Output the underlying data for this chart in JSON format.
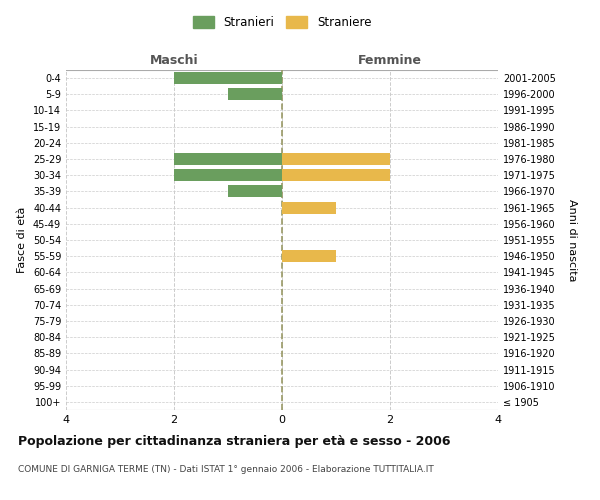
{
  "age_groups": [
    "100+",
    "95-99",
    "90-94",
    "85-89",
    "80-84",
    "75-79",
    "70-74",
    "65-69",
    "60-64",
    "55-59",
    "50-54",
    "45-49",
    "40-44",
    "35-39",
    "30-34",
    "25-29",
    "20-24",
    "15-19",
    "10-14",
    "5-9",
    "0-4"
  ],
  "birth_years": [
    "≤ 1905",
    "1906-1910",
    "1911-1915",
    "1916-1920",
    "1921-1925",
    "1926-1930",
    "1931-1935",
    "1936-1940",
    "1941-1945",
    "1946-1950",
    "1951-1955",
    "1956-1960",
    "1961-1965",
    "1966-1970",
    "1971-1975",
    "1976-1980",
    "1981-1985",
    "1986-1990",
    "1991-1995",
    "1996-2000",
    "2001-2005"
  ],
  "males": [
    0,
    0,
    0,
    0,
    0,
    0,
    0,
    0,
    0,
    0,
    0,
    0,
    0,
    -1,
    -2,
    -2,
    0,
    0,
    0,
    -1,
    -2
  ],
  "females": [
    0,
    0,
    0,
    0,
    0,
    0,
    0,
    0,
    0,
    1,
    0,
    0,
    1,
    0,
    2,
    2,
    0,
    0,
    0,
    0,
    0
  ],
  "male_color": "#6a9e5e",
  "female_color": "#e8b84b",
  "background_color": "#ffffff",
  "grid_color": "#cccccc",
  "title": "Popolazione per cittadinanza straniera per età e sesso - 2006",
  "subtitle": "COMUNE DI GARNIGA TERME (TN) - Dati ISTAT 1° gennaio 2006 - Elaborazione TUTTITALIA.IT",
  "xlabel_left": "Maschi",
  "xlabel_right": "Femmine",
  "ylabel_left": "Fasce di età",
  "ylabel_right": "Anni di nascita",
  "legend_stranieri": "Stranieri",
  "legend_straniere": "Straniere",
  "xlim": [
    -4,
    4
  ],
  "xticks": [
    -4,
    -2,
    0,
    2,
    4
  ],
  "xticklabels": [
    "4",
    "2",
    "0",
    "2",
    "4"
  ],
  "bar_height": 0.75
}
